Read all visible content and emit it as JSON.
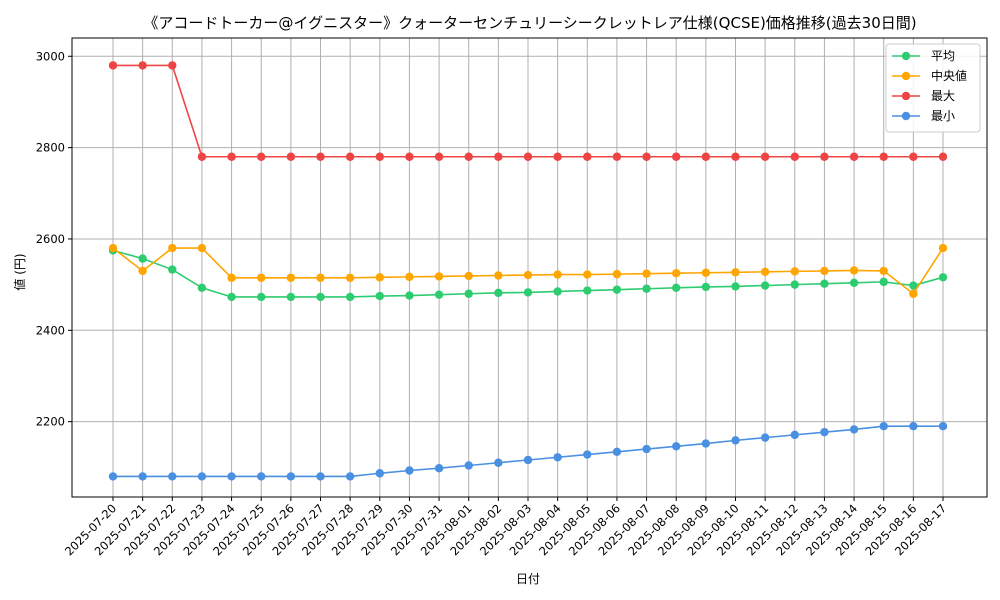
{
  "chart_data": {
    "type": "line",
    "title": "《アコードトーカー@イグニスター》クォーターセンチュリーシークレットレア仕様(QCSE)価格推移(過去30日間)",
    "xlabel": "日付",
    "ylabel": "値 (円)",
    "ylim": [
      2035,
      3040
    ],
    "yticks": [
      2200,
      2400,
      2600,
      2800,
      3000
    ],
    "grid": true,
    "legend_position": "top-right",
    "categories": [
      "2025-07-20",
      "2025-07-21",
      "2025-07-22",
      "2025-07-23",
      "2025-07-24",
      "2025-07-25",
      "2025-07-26",
      "2025-07-27",
      "2025-07-28",
      "2025-07-29",
      "2025-07-30",
      "2025-07-31",
      "2025-08-01",
      "2025-08-02",
      "2025-08-03",
      "2025-08-04",
      "2025-08-05",
      "2025-08-06",
      "2025-08-07",
      "2025-08-08",
      "2025-08-09",
      "2025-08-10",
      "2025-08-11",
      "2025-08-12",
      "2025-08-13",
      "2025-08-14",
      "2025-08-15",
      "2025-08-16",
      "2025-08-17"
    ],
    "series": [
      {
        "name": "平均",
        "color": "#2ecc71",
        "values": [
          2575,
          2557,
          2533,
          2493,
          2473,
          2473,
          2473,
          2473,
          2473,
          2475,
          2476,
          2478,
          2480,
          2482,
          2483,
          2485,
          2487,
          2489,
          2491,
          2493,
          2495,
          2496,
          2498,
          2500,
          2502,
          2504,
          2506,
          2498,
          2516
        ]
      },
      {
        "name": "中央値",
        "color": "#ffa500",
        "values": [
          2580,
          2530,
          2580,
          2580,
          2515,
          2515,
          2515,
          2515,
          2515,
          2516,
          2517,
          2518,
          2519,
          2520,
          2521,
          2522,
          2522,
          2523,
          2524,
          2525,
          2526,
          2527,
          2528,
          2529,
          2530,
          2531,
          2530,
          2480,
          2580
        ]
      },
      {
        "name": "最大",
        "color": "#ef4444",
        "values": [
          2980,
          2980,
          2980,
          2780,
          2780,
          2780,
          2780,
          2780,
          2780,
          2780,
          2780,
          2780,
          2780,
          2780,
          2780,
          2780,
          2780,
          2780,
          2780,
          2780,
          2780,
          2780,
          2780,
          2780,
          2780,
          2780,
          2780,
          2780,
          2780
        ]
      },
      {
        "name": "最小",
        "color": "#4a90e2",
        "values": [
          2080,
          2080,
          2080,
          2080,
          2080,
          2080,
          2080,
          2080,
          2080,
          2087,
          2093,
          2098,
          2104,
          2110,
          2116,
          2122,
          2128,
          2134,
          2140,
          2146,
          2152,
          2159,
          2165,
          2171,
          2177,
          2183,
          2190,
          2190,
          2190
        ]
      }
    ]
  }
}
